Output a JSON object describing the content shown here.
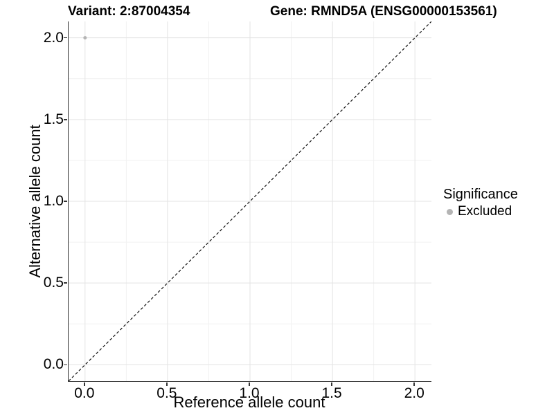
{
  "chart_data": {
    "type": "scatter",
    "title_left": "Variant: 2:87004354",
    "title_right": "Gene: RMND5A (ENSG00000153561)",
    "xlabel": "Reference allele count",
    "ylabel": "Alternative allele count",
    "xlim": [
      -0.1,
      2.1
    ],
    "ylim": [
      -0.1,
      2.1
    ],
    "x_ticks": [
      0.0,
      0.5,
      1.0,
      1.5,
      2.0
    ],
    "y_ticks": [
      0.0,
      0.5,
      1.0,
      1.5,
      2.0
    ],
    "x_tick_labels": [
      "0.0",
      "0.5",
      "1.0",
      "1.5",
      "2.0"
    ],
    "y_tick_labels": [
      "0.0",
      "0.5",
      "1.0",
      "1.5",
      "2.0"
    ],
    "grid": "major and minor gridlines shown",
    "points": [
      {
        "x": 0.0,
        "y": 2.0,
        "series": "Excluded",
        "color": "#b4b4b4",
        "radius": 2.5
      }
    ],
    "reference_line": {
      "kind": "identity y=x",
      "from": [
        -0.1,
        -0.1
      ],
      "to": [
        2.1,
        2.1
      ],
      "style": "dashed",
      "color": "#111111"
    },
    "legend": {
      "title": "Significance",
      "position": "right",
      "items": [
        {
          "label": "Excluded",
          "color": "#b4b4b4",
          "marker": "circle"
        }
      ]
    }
  },
  "colors": {
    "background": "#ffffff",
    "axis_line": "#333333",
    "grid_major": "#e3e3e3",
    "grid_minor": "#f1f1f1",
    "text": "#000000"
  }
}
